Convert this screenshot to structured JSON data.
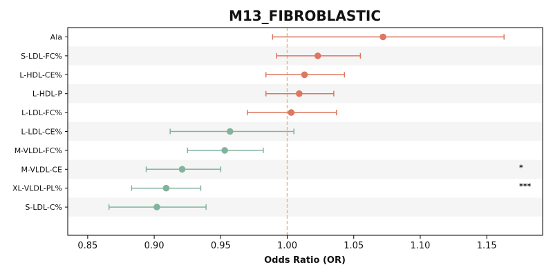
{
  "chart_data": {
    "type": "forest",
    "title": "M13_FIBROBLASTIC",
    "xlabel": "Odds Ratio (OR)",
    "xlim": [
      0.835,
      1.192
    ],
    "xticks": [
      0.85,
      0.9,
      0.95,
      1.0,
      1.05,
      1.1,
      1.15
    ],
    "xtick_labels": [
      "0.85",
      "0.90",
      "0.95",
      "1.00",
      "1.05",
      "1.10",
      "1.15"
    ],
    "reference_line": 1.0,
    "reference_color": "#f3b77a",
    "colors": {
      "above": "#dd775f",
      "below": "#82b39c",
      "band": "#f5f5f5"
    },
    "rows": [
      {
        "label": "Ala",
        "or": 1.072,
        "lo": 0.989,
        "hi": 1.163,
        "sig": ""
      },
      {
        "label": "S-LDL-FC%",
        "or": 1.023,
        "lo": 0.992,
        "hi": 1.055,
        "sig": ""
      },
      {
        "label": "L-HDL-CE%",
        "or": 1.013,
        "lo": 0.984,
        "hi": 1.043,
        "sig": ""
      },
      {
        "label": "L-HDL-P",
        "or": 1.009,
        "lo": 0.984,
        "hi": 1.035,
        "sig": ""
      },
      {
        "label": "L-LDL-FC%",
        "or": 1.003,
        "lo": 0.97,
        "hi": 1.037,
        "sig": ""
      },
      {
        "label": "L-LDL-CE%",
        "or": 0.957,
        "lo": 0.912,
        "hi": 1.005,
        "sig": ""
      },
      {
        "label": "M-VLDL-FC%",
        "or": 0.953,
        "lo": 0.925,
        "hi": 0.982,
        "sig": ""
      },
      {
        "label": "M-VLDL-CE",
        "or": 0.921,
        "lo": 0.894,
        "hi": 0.95,
        "sig": "*"
      },
      {
        "label": "XL-VLDL-PL%",
        "or": 0.909,
        "lo": 0.883,
        "hi": 0.935,
        "sig": "***"
      },
      {
        "label": "S-LDL-C%",
        "or": 0.902,
        "lo": 0.866,
        "hi": 0.939,
        "sig": ""
      }
    ]
  }
}
